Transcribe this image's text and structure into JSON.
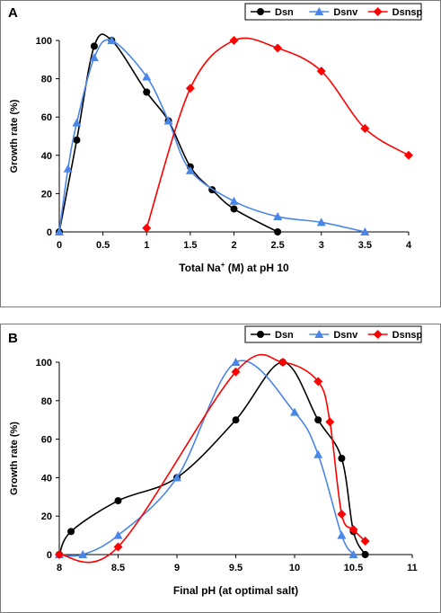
{
  "chart_data": [
    {
      "panel_label": "A",
      "type": "line",
      "xlabel": "Total Na",
      "xlabel_sup": "+",
      "xlabel_tail": " (M) at pH 10",
      "ylabel": "Growth rate (%)",
      "xlim": [
        0,
        4
      ],
      "ylim": [
        0,
        100
      ],
      "x_ticks": [
        "0",
        "0.5",
        "1",
        "1.5",
        "2",
        "2.5",
        "3",
        "3.5",
        "4"
      ],
      "y_ticks": [
        "0",
        "20",
        "40",
        "60",
        "80",
        "100"
      ],
      "legend": "top-right",
      "series": [
        {
          "name": "Dsn",
          "color": "#000000",
          "marker": "circle",
          "points": [
            [
              0,
              0
            ],
            [
              0.2,
              48
            ],
            [
              0.4,
              97
            ],
            [
              0.6,
              100
            ],
            [
              1.0,
              73
            ],
            [
              1.25,
              58
            ],
            [
              1.5,
              34
            ],
            [
              1.75,
              22
            ],
            [
              2.0,
              12
            ],
            [
              2.5,
              0
            ]
          ]
        },
        {
          "name": "Dsnv",
          "color": "#4a86e8",
          "marker": "triangle",
          "points": [
            [
              0,
              0
            ],
            [
              0.1,
              33
            ],
            [
              0.2,
              57
            ],
            [
              0.4,
              91
            ],
            [
              0.6,
              100
            ],
            [
              1.0,
              81
            ],
            [
              1.25,
              58
            ],
            [
              1.5,
              32
            ],
            [
              2.0,
              16
            ],
            [
              2.5,
              8
            ],
            [
              3.0,
              5
            ],
            [
              3.5,
              0
            ]
          ]
        },
        {
          "name": "Dsnsp",
          "color": "#ff0000",
          "marker": "diamond",
          "points": [
            [
              1.0,
              2
            ],
            [
              1.5,
              75
            ],
            [
              2.0,
              100
            ],
            [
              2.5,
              96
            ],
            [
              3.0,
              84
            ],
            [
              3.5,
              54
            ],
            [
              4.0,
              40
            ]
          ]
        }
      ]
    },
    {
      "panel_label": "B",
      "type": "line",
      "xlabel": "Final pH (at optimal salt)",
      "ylabel": "Growth rate (%)",
      "xlim": [
        8,
        11
      ],
      "ylim": [
        0,
        100
      ],
      "x_ticks": [
        "8",
        "8.5",
        "9",
        "9.5",
        "10",
        "10.5",
        "11"
      ],
      "y_ticks": [
        "0",
        "20",
        "40",
        "60",
        "80",
        "100"
      ],
      "legend": "top-right",
      "series": [
        {
          "name": "Dsn",
          "color": "#000000",
          "marker": "circle",
          "points": [
            [
              8.0,
              0
            ],
            [
              8.1,
              12
            ],
            [
              8.5,
              28
            ],
            [
              9.0,
              40
            ],
            [
              9.5,
              70
            ],
            [
              9.9,
              100
            ],
            [
              10.2,
              70
            ],
            [
              10.4,
              50
            ],
            [
              10.5,
              12
            ],
            [
              10.6,
              0
            ]
          ]
        },
        {
          "name": "Dsnv",
          "color": "#4a86e8",
          "marker": "triangle",
          "points": [
            [
              8.0,
              0
            ],
            [
              8.2,
              0
            ],
            [
              8.5,
              10
            ],
            [
              9.0,
              40
            ],
            [
              9.5,
              100
            ],
            [
              10.0,
              74
            ],
            [
              10.2,
              52
            ],
            [
              10.4,
              10
            ],
            [
              10.5,
              0
            ]
          ]
        },
        {
          "name": "Dsnsp",
          "color": "#ff0000",
          "marker": "diamond",
          "points": [
            [
              8.0,
              0
            ],
            [
              8.5,
              4
            ],
            [
              9.5,
              95
            ],
            [
              9.9,
              100
            ],
            [
              10.2,
              90
            ],
            [
              10.3,
              69
            ],
            [
              10.4,
              21
            ],
            [
              10.5,
              13
            ],
            [
              10.6,
              7
            ]
          ]
        }
      ]
    }
  ]
}
